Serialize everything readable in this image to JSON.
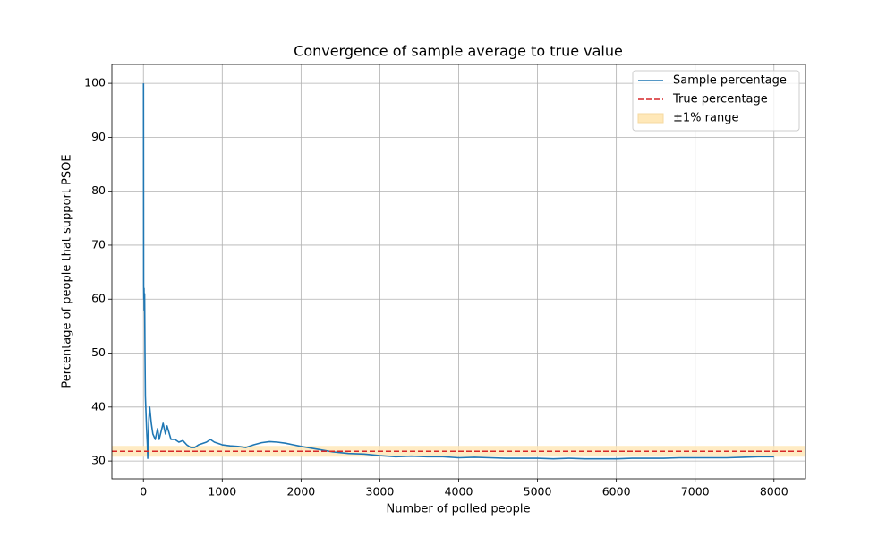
{
  "chart_data": {
    "type": "line",
    "title": "Convergence of sample average to true value",
    "xlabel": "Number of polled people",
    "ylabel": "Percentage of people that support PSOE",
    "xlim": [
      -400,
      8400
    ],
    "ylim": [
      26.7,
      103.5
    ],
    "xticks": [
      0,
      1000,
      2000,
      3000,
      4000,
      5000,
      6000,
      7000,
      8000
    ],
    "yticks": [
      30,
      40,
      50,
      60,
      70,
      80,
      90,
      100
    ],
    "grid": true,
    "legend": "upper right",
    "series": [
      {
        "name": "Sample percentage",
        "color": "#1f77b4",
        "x": [
          1,
          3,
          5,
          8,
          10,
          15,
          20,
          25,
          30,
          40,
          50,
          55,
          60,
          70,
          80,
          100,
          120,
          150,
          180,
          200,
          250,
          280,
          300,
          350,
          400,
          450,
          500,
          550,
          600,
          650,
          700,
          800,
          850,
          900,
          1000,
          1100,
          1200,
          1300,
          1400,
          1500,
          1600,
          1700,
          1800,
          1900,
          2000,
          2200,
          2400,
          2600,
          2800,
          3000,
          3200,
          3400,
          3600,
          3800,
          4000,
          4200,
          4400,
          4600,
          4800,
          5000,
          5200,
          5400,
          5600,
          5800,
          6000,
          6200,
          6400,
          6600,
          6800,
          7000,
          7200,
          7400,
          7600,
          7800,
          8000
        ],
        "values": [
          100,
          62.5,
          60,
          62,
          58,
          61,
          50,
          42,
          40,
          36,
          33,
          30.5,
          34,
          38,
          40,
          37,
          35,
          34,
          36,
          34,
          37,
          35,
          36.5,
          34,
          34,
          33.5,
          33.8,
          33,
          32.5,
          32.5,
          33,
          33.5,
          34,
          33.5,
          33,
          32.8,
          32.7,
          32.5,
          33,
          33.4,
          33.6,
          33.5,
          33.3,
          33,
          32.7,
          32.2,
          31.7,
          31.4,
          31.3,
          31,
          30.8,
          30.9,
          30.8,
          30.8,
          30.6,
          30.7,
          30.6,
          30.5,
          30.5,
          30.5,
          30.4,
          30.5,
          30.4,
          30.4,
          30.4,
          30.5,
          30.5,
          30.5,
          30.6,
          30.6,
          30.6,
          30.6,
          30.7,
          30.8,
          30.8
        ]
      }
    ],
    "reference_line": {
      "name": "True percentage",
      "color": "#d62728",
      "value": 31.8,
      "style": "dashed"
    },
    "band": {
      "name": "±1% range",
      "color": "#ffe8b8",
      "lower": 30.8,
      "upper": 32.8
    }
  }
}
